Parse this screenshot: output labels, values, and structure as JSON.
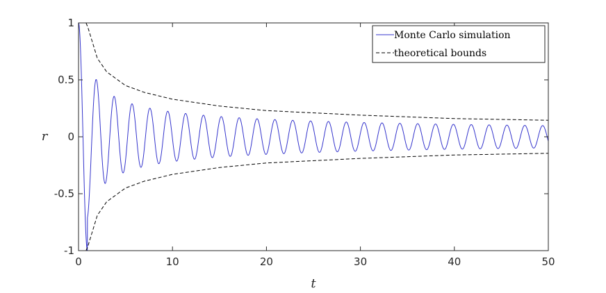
{
  "chart_data": {
    "type": "line",
    "xlabel": "t",
    "ylabel": "r",
    "xlim": [
      0,
      50
    ],
    "ylim": [
      -1,
      1
    ],
    "x_ticks": [
      0,
      10,
      20,
      30,
      40,
      50
    ],
    "x_tick_labels": [
      "0",
      "10",
      "20",
      "30",
      "40",
      "50"
    ],
    "y_ticks": [
      1,
      0.5,
      0,
      -0.5,
      -1
    ],
    "y_tick_labels": [
      "1",
      "0.5",
      "0",
      "-0.5",
      "-1"
    ],
    "grid": false,
    "legend_position": "top-right",
    "series": [
      {
        "name": "Monte Carlo simulation",
        "style": "solid",
        "color": "#3333cc",
        "description_values": {
          "x": [
            0,
            0.95,
            1.9,
            2.85,
            3.8,
            5.7,
            7.6,
            9.5,
            13.3,
            19.0,
            24.7,
            30.4,
            38.0,
            49.4
          ],
          "y": [
            1.0,
            -0.69,
            0.58,
            -0.49,
            0.45,
            0.38,
            0.33,
            0.3,
            0.26,
            0.22,
            0.19,
            0.17,
            0.155,
            0.14
          ]
        }
      },
      {
        "name": "theoretical bounds",
        "style": "dashed",
        "color": "#000000",
        "x": [
          0.8,
          1,
          2,
          3,
          5,
          7,
          10,
          15,
          20,
          30,
          40,
          50
        ],
        "y_upper": [
          1.0,
          0.96,
          0.69,
          0.57,
          0.45,
          0.39,
          0.33,
          0.27,
          0.23,
          0.19,
          0.16,
          0.145
        ],
        "y_lower": [
          -1.0,
          -0.96,
          -0.69,
          -0.57,
          -0.45,
          -0.39,
          -0.33,
          -0.27,
          -0.23,
          -0.19,
          -0.16,
          -0.145
        ]
      }
    ]
  }
}
